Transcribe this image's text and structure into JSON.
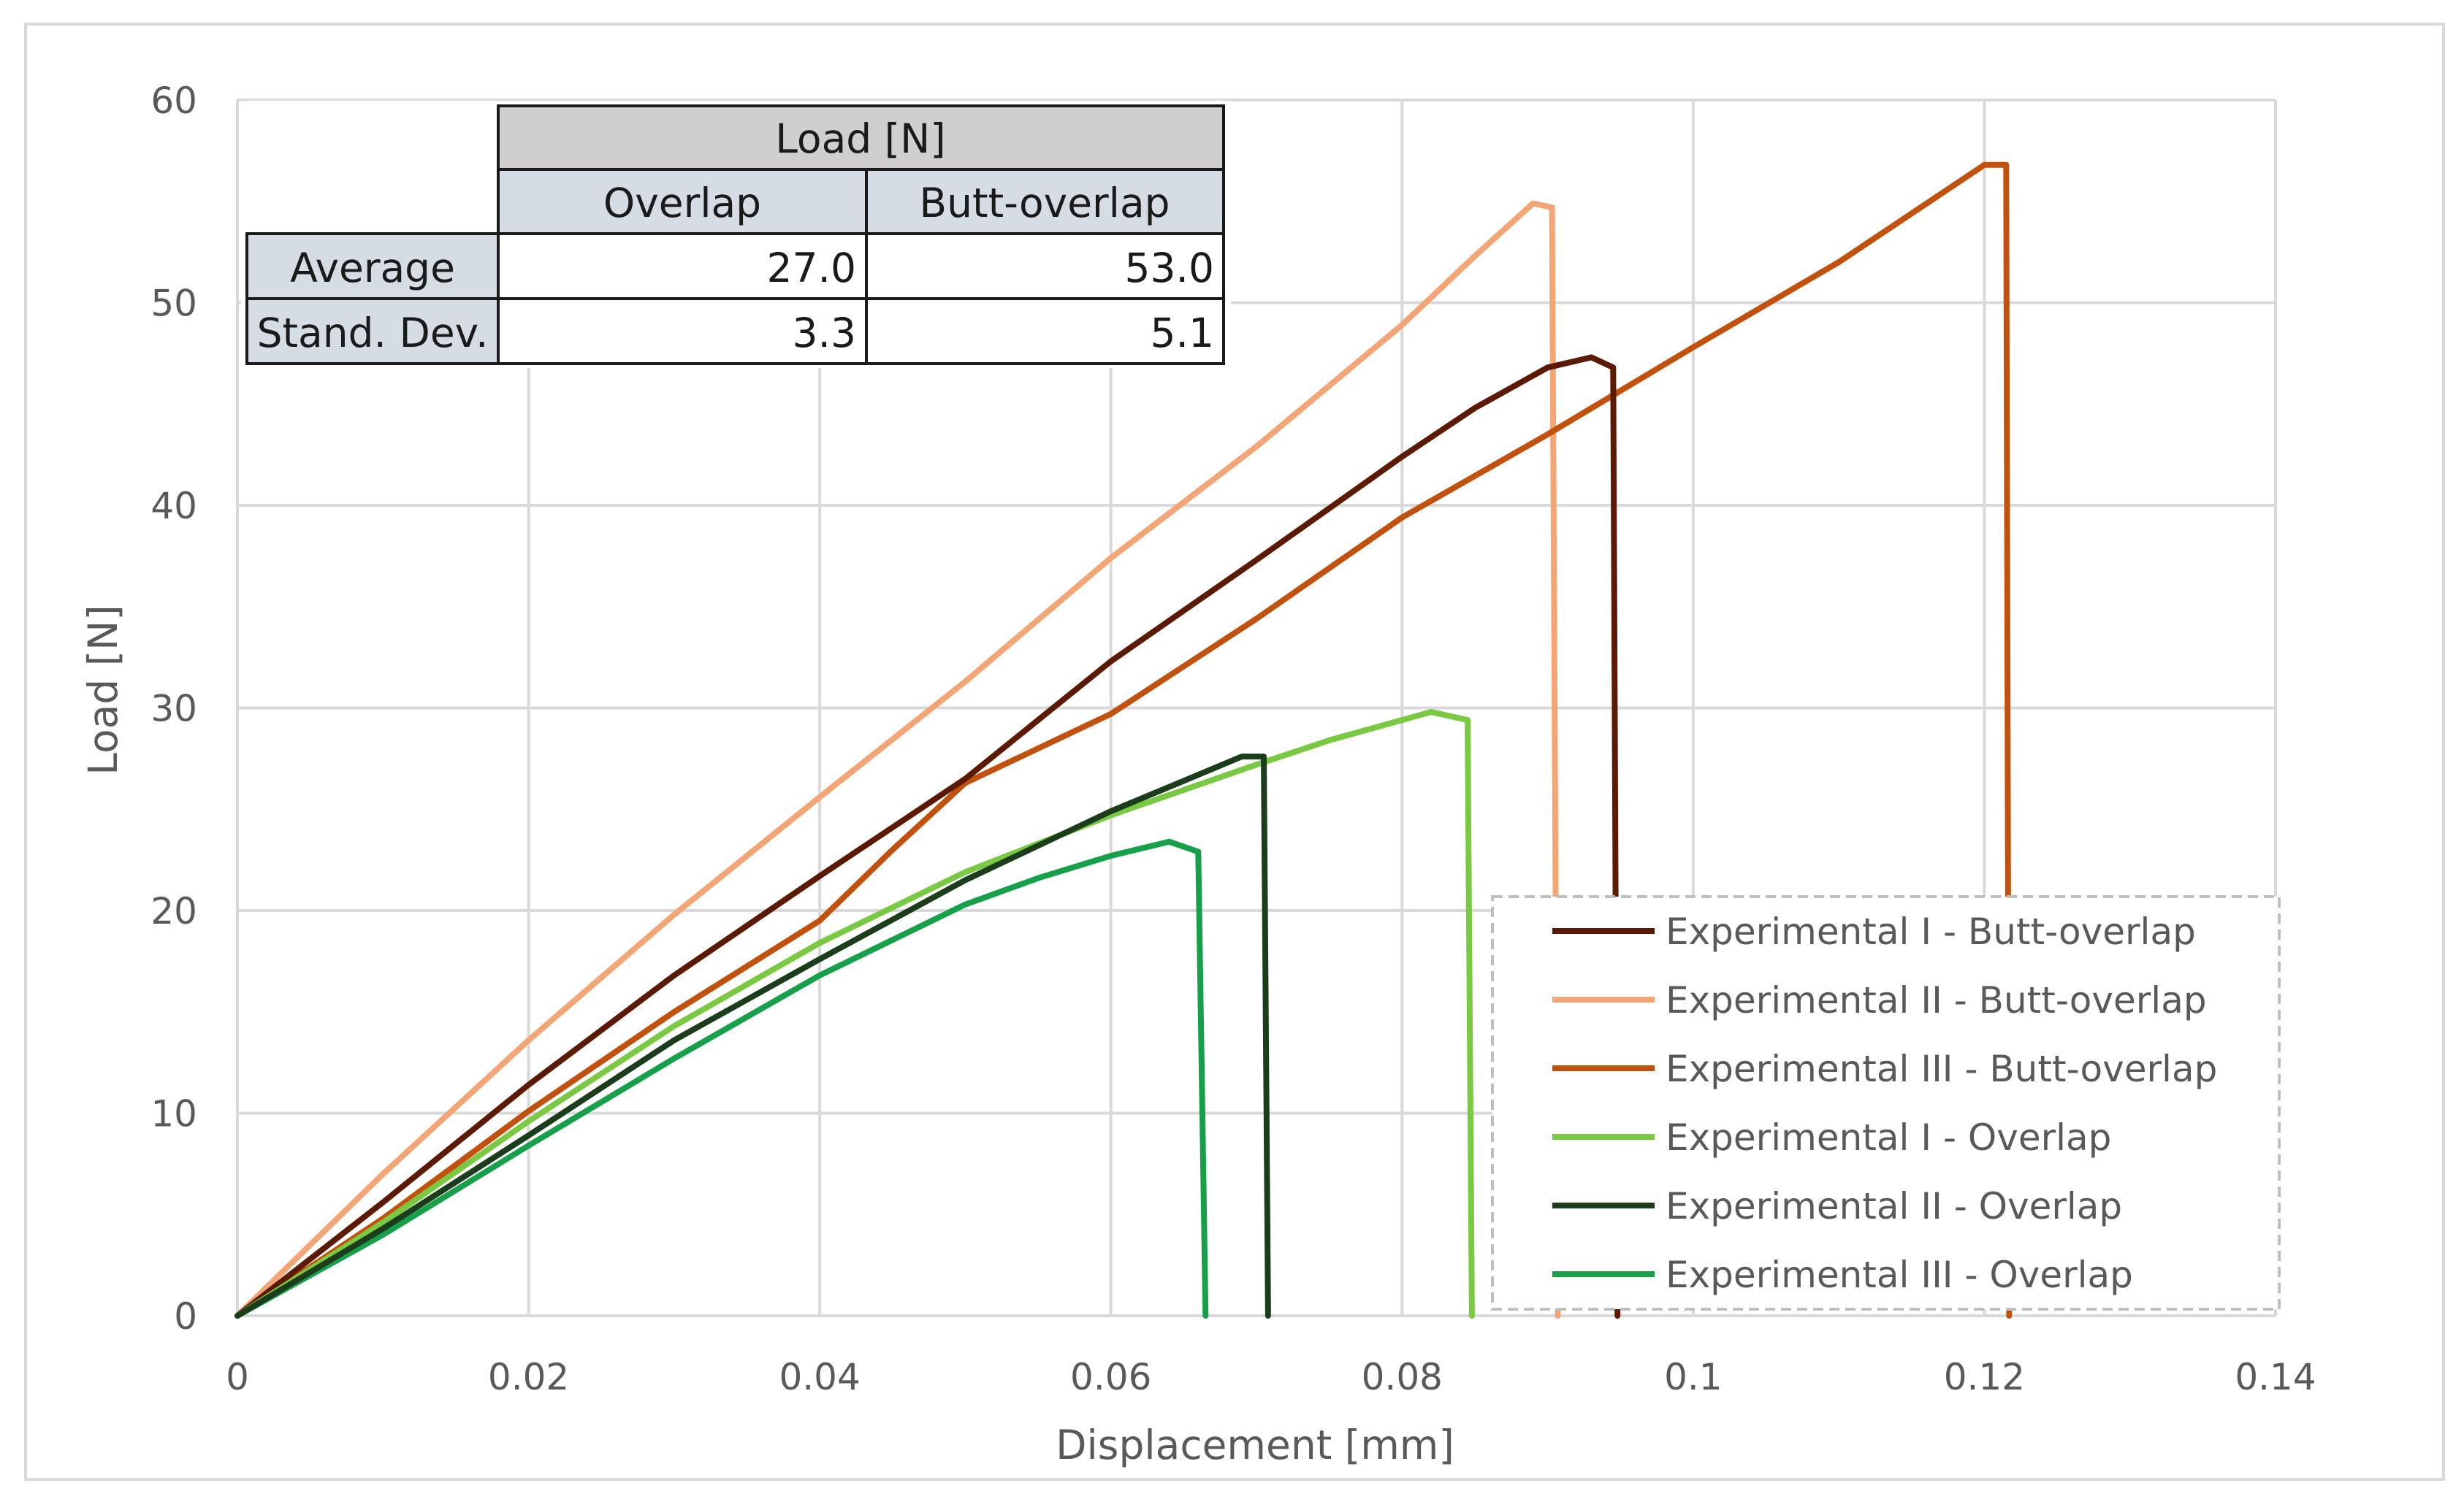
{
  "chart_data": {
    "type": "line",
    "title": "",
    "xlabel": "Displacement [mm]",
    "ylabel": "Load [N]",
    "xlim": [
      0,
      0.14
    ],
    "ylim": [
      0,
      60
    ],
    "x_ticks": [
      0,
      0.02,
      0.04,
      0.06,
      0.08,
      0.1,
      0.12,
      0.14
    ],
    "x_tick_labels": [
      "0",
      "0.02",
      "0.04",
      "0.06",
      "0.08",
      "0.1",
      "0.12",
      "0.14"
    ],
    "y_ticks": [
      0,
      10,
      20,
      30,
      40,
      50,
      60
    ],
    "y_tick_labels": [
      "0",
      "10",
      "20",
      "30",
      "40",
      "50",
      "60"
    ],
    "grid": true,
    "legend_position": "bottom-right",
    "series": [
      {
        "name": "Experimental I - Butt-overlap",
        "color": "#5c1a04",
        "points": [
          [
            0,
            0
          ],
          [
            0.01,
            5.6
          ],
          [
            0.02,
            11.4
          ],
          [
            0.03,
            16.8
          ],
          [
            0.04,
            21.7
          ],
          [
            0.05,
            26.5
          ],
          [
            0.06,
            32.3
          ],
          [
            0.07,
            37.3
          ],
          [
            0.08,
            42.4
          ],
          [
            0.085,
            44.8
          ],
          [
            0.09,
            46.8
          ],
          [
            0.093,
            47.3
          ],
          [
            0.0945,
            46.8
          ],
          [
            0.0948,
            0
          ]
        ]
      },
      {
        "name": "Experimental II - Butt-overlap",
        "color": "#f4a576",
        "points": [
          [
            0,
            0
          ],
          [
            0.01,
            7.0
          ],
          [
            0.02,
            13.6
          ],
          [
            0.03,
            19.8
          ],
          [
            0.04,
            25.6
          ],
          [
            0.05,
            31.3
          ],
          [
            0.06,
            37.4
          ],
          [
            0.07,
            42.9
          ],
          [
            0.08,
            48.9
          ],
          [
            0.085,
            52.3
          ],
          [
            0.089,
            54.9
          ],
          [
            0.0903,
            54.7
          ],
          [
            0.0907,
            0
          ]
        ]
      },
      {
        "name": "Experimental III - Butt-overlap",
        "color": "#c2510e",
        "points": [
          [
            0,
            0
          ],
          [
            0.01,
            4.8
          ],
          [
            0.02,
            10.1
          ],
          [
            0.03,
            15.0
          ],
          [
            0.04,
            19.5
          ],
          [
            0.045,
            23.0
          ],
          [
            0.05,
            26.3
          ],
          [
            0.06,
            29.7
          ],
          [
            0.07,
            34.4
          ],
          [
            0.08,
            39.4
          ],
          [
            0.09,
            43.5
          ],
          [
            0.1,
            47.8
          ],
          [
            0.11,
            52.0
          ],
          [
            0.12,
            56.8
          ],
          [
            0.1215,
            56.8
          ],
          [
            0.1217,
            0
          ]
        ]
      },
      {
        "name": "Experimental I - Overlap",
        "color": "#7ac943",
        "points": [
          [
            0,
            0
          ],
          [
            0.01,
            4.6
          ],
          [
            0.02,
            9.6
          ],
          [
            0.03,
            14.3
          ],
          [
            0.04,
            18.4
          ],
          [
            0.05,
            21.9
          ],
          [
            0.06,
            24.7
          ],
          [
            0.07,
            27.2
          ],
          [
            0.075,
            28.4
          ],
          [
            0.08,
            29.4
          ],
          [
            0.082,
            29.8
          ],
          [
            0.0845,
            29.4
          ],
          [
            0.0848,
            0
          ]
        ]
      },
      {
        "name": "Experimental II - Overlap",
        "color": "#1b3d1b",
        "points": [
          [
            0,
            0
          ],
          [
            0.01,
            4.3
          ],
          [
            0.02,
            8.9
          ],
          [
            0.03,
            13.6
          ],
          [
            0.04,
            17.6
          ],
          [
            0.05,
            21.5
          ],
          [
            0.06,
            24.9
          ],
          [
            0.065,
            26.4
          ],
          [
            0.069,
            27.6
          ],
          [
            0.0705,
            27.6
          ],
          [
            0.0708,
            0
          ]
        ]
      },
      {
        "name": "Experimental III - Overlap",
        "color": "#16a04a",
        "points": [
          [
            0,
            0
          ],
          [
            0.01,
            4.0
          ],
          [
            0.02,
            8.4
          ],
          [
            0.03,
            12.7
          ],
          [
            0.04,
            16.8
          ],
          [
            0.05,
            20.3
          ],
          [
            0.055,
            21.6
          ],
          [
            0.06,
            22.7
          ],
          [
            0.064,
            23.4
          ],
          [
            0.066,
            22.9
          ],
          [
            0.0665,
            0
          ]
        ]
      }
    ]
  },
  "summary_table": {
    "group_header": "Load [N]",
    "columns": [
      "Overlap",
      "Butt-overlap"
    ],
    "rows": [
      {
        "label": "Average",
        "values": [
          "27.0",
          "53.0"
        ]
      },
      {
        "label": "Stand. Dev.",
        "values": [
          "3.3",
          "5.1"
        ]
      }
    ]
  }
}
